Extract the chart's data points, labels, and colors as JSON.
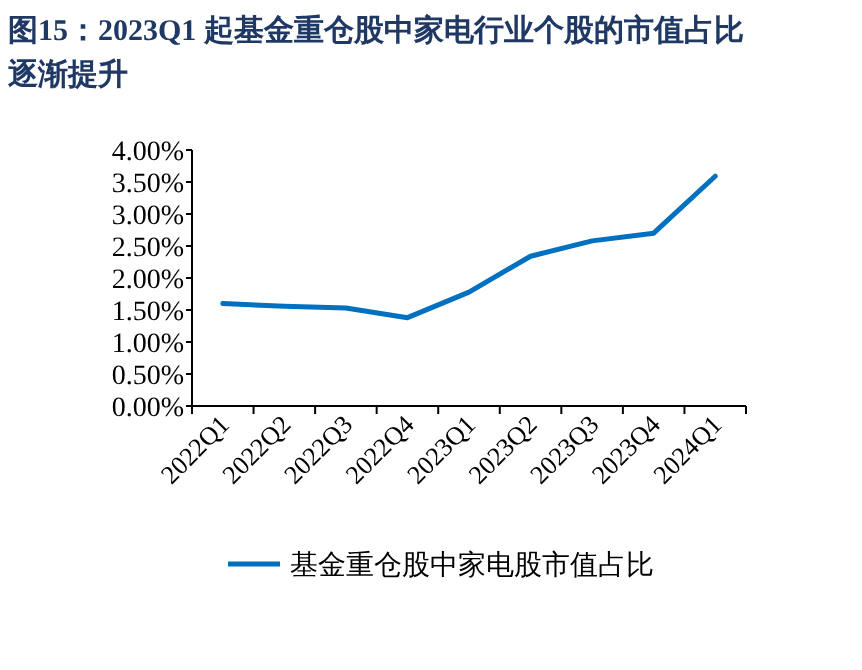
{
  "chart_data": {
    "type": "line",
    "title": "图15：2023Q1 起基金重仓股中家电行业个股的市值占比逐渐提升",
    "categories": [
      "2022Q1",
      "2022Q2",
      "2022Q3",
      "2022Q4",
      "2023Q1",
      "2023Q2",
      "2023Q3",
      "2023Q4",
      "2024Q1"
    ],
    "series": [
      {
        "name": "基金重仓股中家电股市值占比",
        "color": "#0070c0",
        "values": [
          1.6,
          1.56,
          1.53,
          1.38,
          1.78,
          2.34,
          2.58,
          2.7,
          3.59
        ]
      }
    ],
    "ylim": [
      0,
      4
    ],
    "yticks": [
      {
        "value": 0,
        "label": "0.00%"
      },
      {
        "value": 0.5,
        "label": "0.50%"
      },
      {
        "value": 1,
        "label": "1.00%"
      },
      {
        "value": 1.5,
        "label": "1.50%"
      },
      {
        "value": 2,
        "label": "2.00%"
      },
      {
        "value": 2.5,
        "label": "2.50%"
      },
      {
        "value": 3,
        "label": "3.00%"
      },
      {
        "value": 3.5,
        "label": "3.50%"
      },
      {
        "value": 4,
        "label": "4.00%"
      }
    ],
    "legend": "bottom",
    "grid": false,
    "marker": "none",
    "line_style": "solid"
  }
}
